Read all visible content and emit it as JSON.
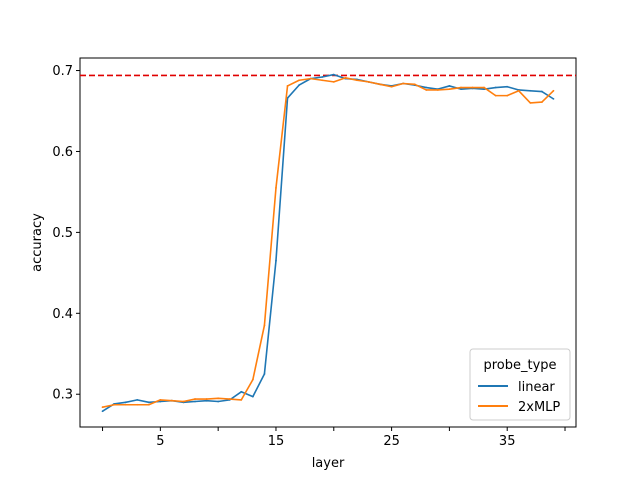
{
  "chart_data": {
    "type": "line",
    "xlabel": "layer",
    "ylabel": "accuracy",
    "xlim": [
      -1.95,
      40.95
    ],
    "ylim": [
      0.2595,
      0.7155
    ],
    "xticks": [
      0,
      5,
      10,
      15,
      20,
      25,
      30,
      35,
      40
    ],
    "xtick_labels": [
      "",
      "5",
      "",
      "15",
      "",
      "25",
      "",
      "35",
      ""
    ],
    "yticks": [
      0.3,
      0.4,
      0.5,
      0.6,
      0.7
    ],
    "ytick_labels": [
      "0.3",
      "0.4",
      "0.5",
      "0.6",
      "0.7"
    ],
    "grid": false,
    "legend": {
      "title": "probe_type",
      "placement": "bottom-right"
    },
    "reference_line": {
      "y": 0.694,
      "color": "#e00000",
      "style": "dashed"
    },
    "x": [
      0,
      1,
      2,
      3,
      4,
      5,
      6,
      7,
      8,
      9,
      10,
      11,
      12,
      13,
      14,
      15,
      16,
      17,
      18,
      19,
      20,
      21,
      22,
      23,
      24,
      25,
      26,
      27,
      28,
      29,
      30,
      31,
      32,
      33,
      34,
      35,
      36,
      37,
      38,
      39
    ],
    "series": [
      {
        "name": "linear",
        "color": "#1f77b4",
        "values": [
          0.279,
          0.288,
          0.29,
          0.293,
          0.29,
          0.291,
          0.292,
          0.29,
          0.291,
          0.292,
          0.291,
          0.293,
          0.303,
          0.297,
          0.325,
          0.465,
          0.666,
          0.682,
          0.69,
          0.692,
          0.695,
          0.69,
          0.689,
          0.686,
          0.683,
          0.681,
          0.684,
          0.682,
          0.679,
          0.677,
          0.681,
          0.677,
          0.678,
          0.677,
          0.679,
          0.68,
          0.676,
          0.675,
          0.674,
          0.665
        ]
      },
      {
        "name": "2xMLP",
        "color": "#ff7f0e",
        "values": [
          0.284,
          0.287,
          0.287,
          0.287,
          0.287,
          0.293,
          0.292,
          0.291,
          0.294,
          0.294,
          0.295,
          0.294,
          0.293,
          0.318,
          0.385,
          0.555,
          0.681,
          0.688,
          0.69,
          0.688,
          0.686,
          0.691,
          0.688,
          0.686,
          0.683,
          0.68,
          0.684,
          0.683,
          0.676,
          0.676,
          0.677,
          0.679,
          0.679,
          0.679,
          0.669,
          0.669,
          0.675,
          0.66,
          0.661,
          0.675
        ]
      }
    ]
  }
}
